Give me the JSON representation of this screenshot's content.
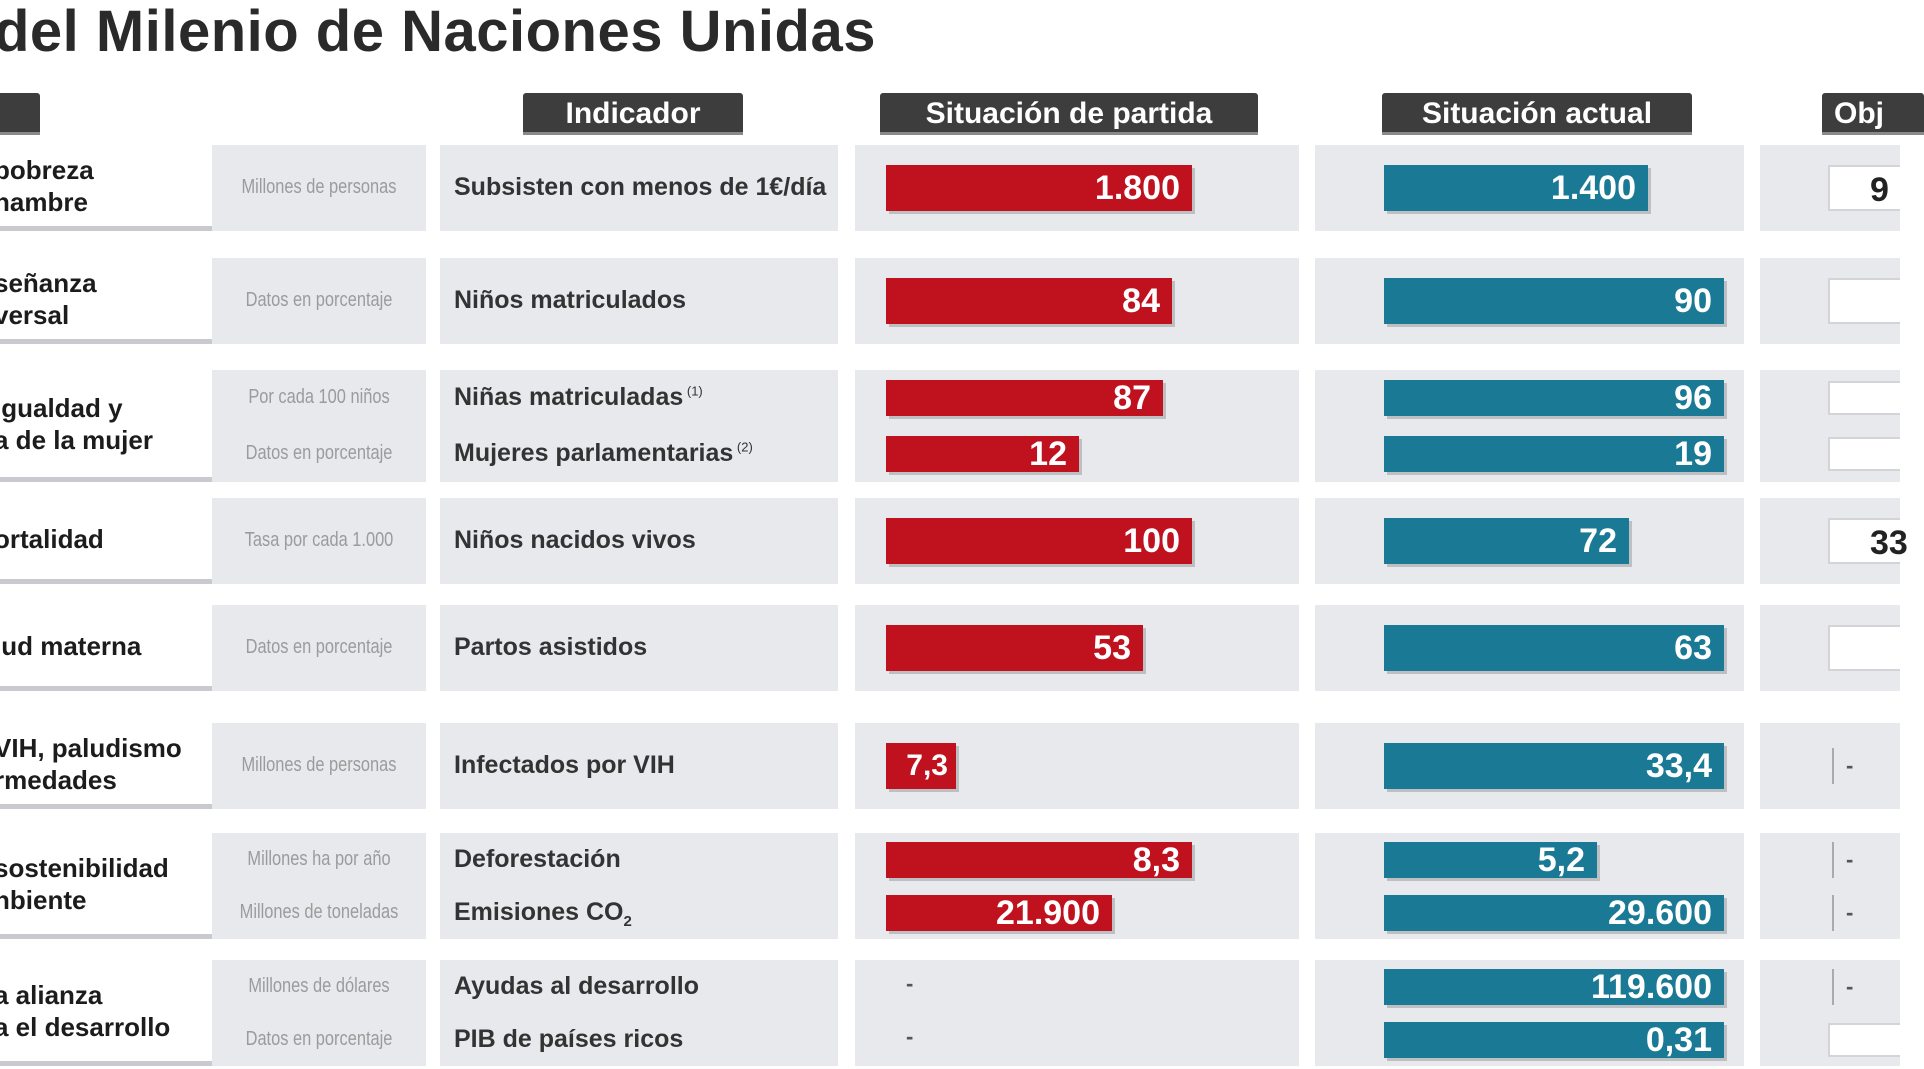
{
  "title": "del Milenio de Naciones Unidas",
  "headers": {
    "indicator": "Indicador",
    "start": "Situación de partida",
    "current": "Situación actual",
    "objective": "Obj"
  },
  "colors": {
    "start_bar": "#c0111f",
    "current_bar": "#1a7a96",
    "header_bg": "#3d3d3d",
    "cell_bg": "#e8e9ed"
  },
  "chart_data": {
    "type": "table",
    "columns": [
      "Indicador",
      "Situación de partida",
      "Situación actual",
      "Obj"
    ],
    "goals": [
      {
        "label": "pobreza\nhambre",
        "indicators": [
          {
            "unit": "Millones de personas",
            "name": "Subsisten con menos de 1€/día",
            "start": 1800,
            "start_label": "1.800",
            "current": 1400,
            "current_label": "1.400",
            "objective": "9"
          }
        ]
      },
      {
        "label": "señanza\nversal",
        "indicators": [
          {
            "unit": "Datos en porcentaje",
            "name": "Niños matriculados",
            "start": 84,
            "start_label": "84",
            "current": 90,
            "current_label": "90",
            "objective": ""
          }
        ]
      },
      {
        "label": "igualdad y\na de la mujer",
        "indicators": [
          {
            "unit": "Por cada 100 niños",
            "name": "Niñas matriculadas",
            "note": "(1)",
            "start": 87,
            "start_label": "87",
            "current": 96,
            "current_label": "96",
            "objective": ""
          },
          {
            "unit": "Datos en porcentaje",
            "name": "Mujeres parlamentarias",
            "note": "(2)",
            "start": 12,
            "start_label": "12",
            "current": 19,
            "current_label": "19",
            "objective": ""
          }
        ]
      },
      {
        "label": "ortalidad",
        "indicators": [
          {
            "unit": "Tasa por cada 1.000",
            "name": "Niños nacidos vivos",
            "start": 100,
            "start_label": "100",
            "current": 72,
            "current_label": "72",
            "objective": "33"
          }
        ]
      },
      {
        "label": "lud materna",
        "indicators": [
          {
            "unit": "Datos en porcentaje",
            "name": "Partos asistidos",
            "start": 53,
            "start_label": "53",
            "current": 63,
            "current_label": "63",
            "objective": ""
          }
        ]
      },
      {
        "label": "VIH, paludismo\nrmedades",
        "indicators": [
          {
            "unit": "Millones de personas",
            "name": "Infectados por VIH",
            "start": 7.3,
            "start_label": "7,3",
            "current": 33.4,
            "current_label": "33,4",
            "objective": "-"
          }
        ]
      },
      {
        "label": "sostenibilidad\nnbiente",
        "indicators": [
          {
            "unit": "Millones ha por año",
            "name": "Deforestación",
            "start": 8.3,
            "start_label": "8,3",
            "current": 5.2,
            "current_label": "5,2",
            "objective": "-"
          },
          {
            "unit": "Millones de toneladas",
            "name": "Emisiones CO",
            "sub": "2",
            "start": 21900,
            "start_label": "21.900",
            "current": 29600,
            "current_label": "29.600",
            "objective": "-"
          }
        ]
      },
      {
        "label": "a alianza\na el desarrollo",
        "indicators": [
          {
            "unit": "Millones de dólares",
            "name": "Ayudas al desarrollo",
            "start": null,
            "start_label": "-",
            "current": 119600,
            "current_label": "119.600",
            "objective": "-"
          },
          {
            "unit": "Datos en porcentaje",
            "name": "PIB de países ricos",
            "start": null,
            "start_label": "-",
            "current": 0.31,
            "current_label": "0,31",
            "objective": ""
          }
        ]
      }
    ]
  }
}
